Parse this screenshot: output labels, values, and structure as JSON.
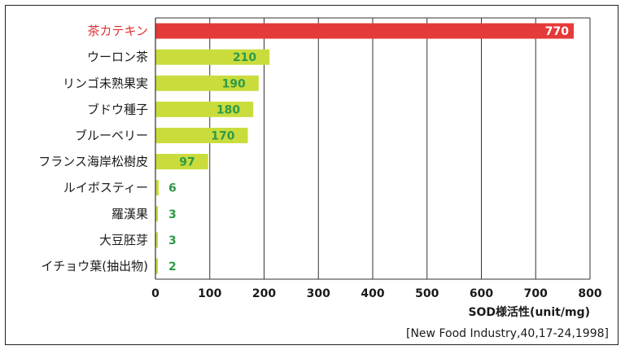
{
  "chart_data": {
    "type": "bar",
    "orientation": "horizontal",
    "categories": [
      "茶カテキン",
      "ウーロン茶",
      "リンゴ未熟果実",
      "ブドウ種子",
      "ブルーベリー",
      "フランス海岸松樹皮",
      "ルイボスティー",
      "羅漢果",
      "大豆胚芽",
      "イチョウ葉(抽出物)"
    ],
    "values": [
      770,
      210,
      190,
      180,
      170,
      97,
      6,
      3,
      3,
      2
    ],
    "value_labels": [
      "770",
      "210",
      "190",
      "180",
      "170",
      "97",
      "6",
      "3",
      "3",
      "2"
    ],
    "highlight_index": 0,
    "xlabel": "SOD様活性(unit/mg)",
    "xlim": [
      0,
      800
    ],
    "xticks": [
      "0",
      "100",
      "200",
      "300",
      "400",
      "500",
      "600",
      "700",
      "800"
    ],
    "grid": "vertical",
    "colors": {
      "highlight_bar": "#e53a3a",
      "bar": "#c9dc3c",
      "highlight_text": "#e03030",
      "value_text": "#2f9a46",
      "highlight_value_text": "#ffffff"
    }
  },
  "source": "[New Food Industry,40,17-24,1998]"
}
